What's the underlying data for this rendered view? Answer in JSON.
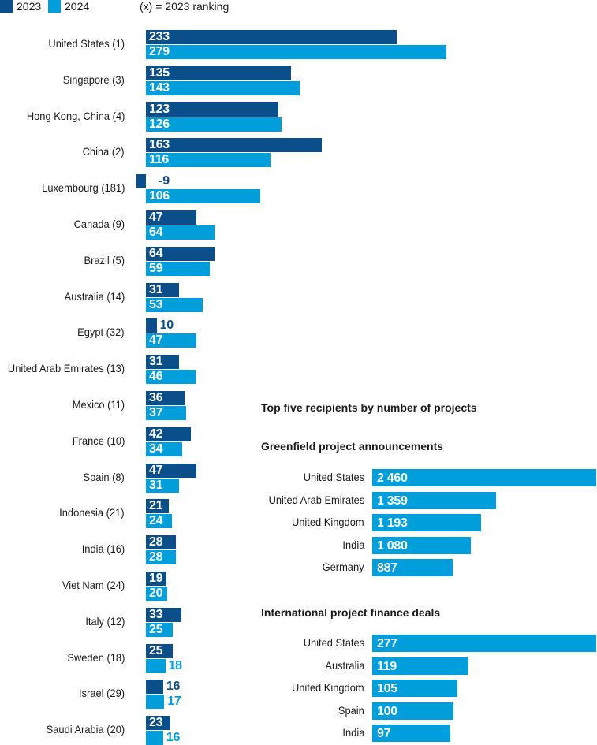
{
  "legend": {
    "series_2023": "2023",
    "series_2024": "2024",
    "note": "(x) = 2023 ranking"
  },
  "colors": {
    "c2023": "#0b4f8a",
    "c2024": "#009edb"
  },
  "chart_data": [
    {
      "type": "bar",
      "orientation": "horizontal",
      "categories": [
        "United States (1)",
        "Singapore (3)",
        "Hong Kong, China (4)",
        "China (2)",
        "Luxembourg (181)",
        "Canada (9)",
        "Brazil (5)",
        "Australia (14)",
        "Egypt (32)",
        "United Arab Emirates (13)",
        "Mexico (11)",
        "France (10)",
        "Spain (8)",
        "Indonesia (21)",
        "India (16)",
        "Viet Nam (24)",
        "Italy (12)",
        "Sweden (18)",
        "Israel (29)",
        "Saudi Arabia (20)"
      ],
      "series": [
        {
          "name": "2023",
          "values": [
            233,
            135,
            123,
            163,
            -9,
            47,
            64,
            31,
            10,
            31,
            36,
            42,
            47,
            21,
            28,
            19,
            33,
            25,
            16,
            23
          ]
        },
        {
          "name": "2024",
          "values": [
            279,
            143,
            126,
            116,
            106,
            64,
            59,
            53,
            47,
            46,
            37,
            34,
            31,
            24,
            28,
            20,
            25,
            18,
            17,
            16
          ]
        }
      ],
      "legend": "top-left"
    },
    {
      "type": "bar",
      "orientation": "horizontal",
      "title": "Top five recipients by number of projects",
      "subtitle": "Greenfield project announcements",
      "categories": [
        "United States",
        "United Arab Emirates",
        "United Kingdom",
        "India",
        "Germany"
      ],
      "values": [
        2460,
        1359,
        1193,
        1080,
        887
      ],
      "value_labels": [
        "2 460",
        "1 359",
        "1 193",
        "1 080",
        "887"
      ]
    },
    {
      "type": "bar",
      "orientation": "horizontal",
      "subtitle": "International project finance deals",
      "categories": [
        "United States",
        "Australia",
        "United Kingdom",
        "Spain",
        "India"
      ],
      "values": [
        277,
        119,
        105,
        100,
        97
      ],
      "value_labels": [
        "277",
        "119",
        "105",
        "100",
        "97"
      ]
    }
  ]
}
